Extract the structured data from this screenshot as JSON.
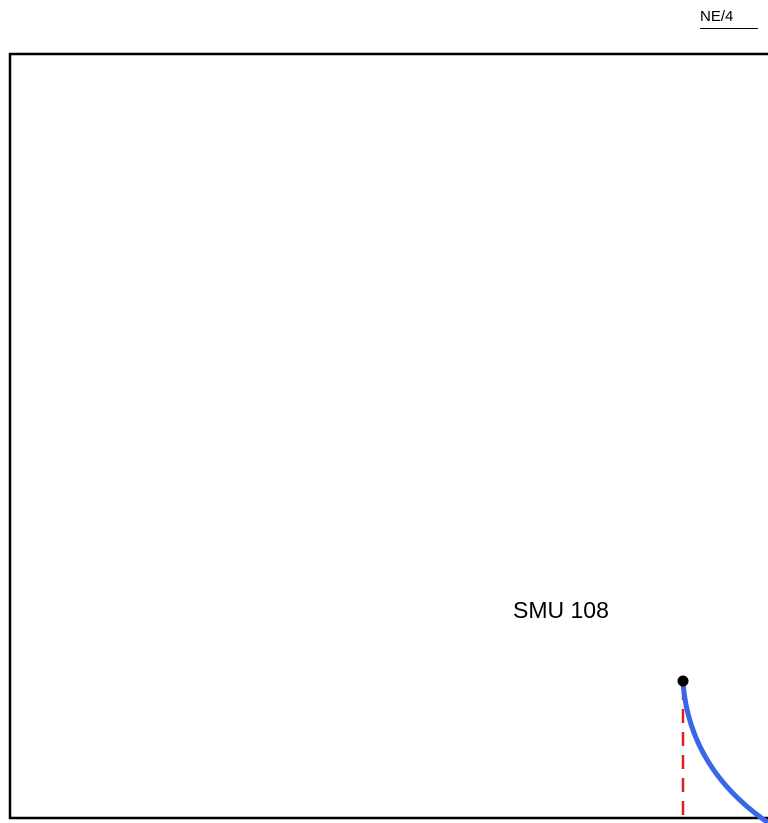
{
  "sheet": {
    "reference": "NE/4"
  },
  "diagram": {
    "node": {
      "label": "SMU 108"
    },
    "colors": {
      "border": "#000000",
      "route": "#3a66e8",
      "guide_line": "#e02020",
      "node": "#000000"
    }
  }
}
